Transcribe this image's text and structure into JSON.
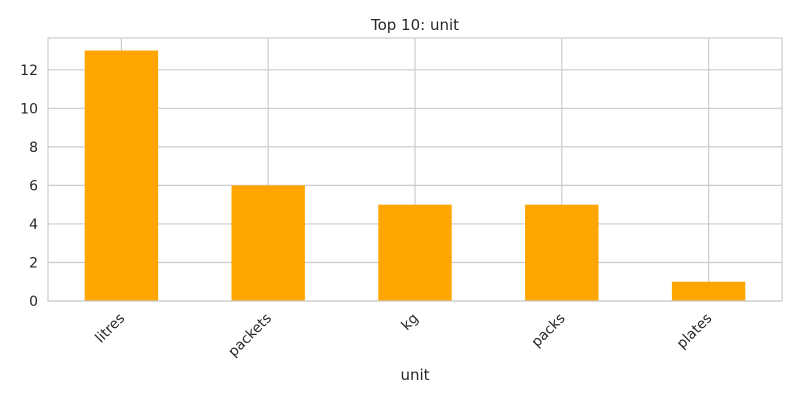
{
  "chart_data": {
    "type": "bar",
    "title": "Top 10: unit",
    "xlabel": "unit",
    "ylabel": "",
    "categories": [
      "litres",
      "packets",
      "kg",
      "packs",
      "plates"
    ],
    "values": [
      13,
      6,
      5,
      5,
      1
    ],
    "ylim": [
      0,
      13.65
    ],
    "yticks": [
      0,
      2,
      4,
      6,
      8,
      10,
      12
    ],
    "grid": true,
    "bar_color": "#ffa500",
    "grid_color": "#cccccc",
    "spine_color": "#cccccc"
  }
}
